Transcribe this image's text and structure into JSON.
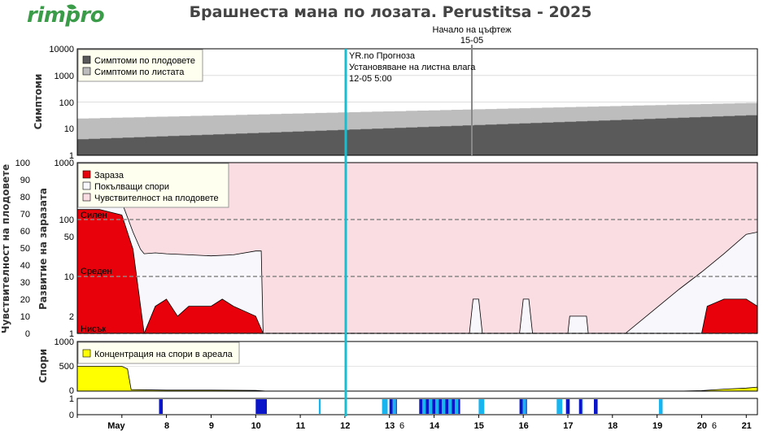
{
  "header": {
    "logo_text": "rimpro",
    "title": "Брашнеста мана по лозата.  Perustitsa - 2025"
  },
  "colors": {
    "symptoms_fruit": "#5a5a5a",
    "symptoms_leaf": "#bdbdbd",
    "infection": "#e8000a",
    "spores_discharge_fill": "#f7f7fc",
    "fruit_susceptibility_bg": "#f9dde3",
    "spore_concentration": "#ffff00",
    "forecast_line": "#17becf",
    "bloom_line": "#888888",
    "wet_dark": "#0a14c8",
    "wet_light": "#18b4f0"
  },
  "annotations": {
    "bloom_title": "Начало на цъфтеж",
    "bloom_date": "15-05",
    "forecast_line1": "YR.no Прогноза",
    "forecast_line2": "Установяване на листна влага",
    "forecast_line3": "12-05 5:00",
    "level_high": "Силен",
    "level_medium": "Среден",
    "level_low": "Нисък"
  },
  "chart_data": [
    {
      "id": "symptoms",
      "type": "area",
      "ylabel": "Симптоми",
      "yscale": "log",
      "ylim": [
        1,
        10000
      ],
      "yticks": [
        "10000",
        "1000",
        "100",
        "10",
        "1"
      ],
      "legend": [
        "Симптоми по плодовете",
        "Симптоми по листата"
      ],
      "legend_position": "top-left",
      "x": [
        "06-05",
        "21-05"
      ],
      "series": [
        {
          "name": "Симптоми по плодовете",
          "start": 4,
          "end": 33
        },
        {
          "name": "Симптоми по листата",
          "start": 24,
          "end": 95
        }
      ]
    },
    {
      "id": "infection",
      "type": "area",
      "ylabel_left": "Чувствителност на плодовете",
      "ylabel_right": "Развитие на заразата",
      "yticks_left": [
        "100",
        "90",
        "80",
        "70",
        "60",
        "50",
        "40",
        "30",
        "20",
        "10",
        "0"
      ],
      "yticks_right": [
        "1000",
        "100",
        "50",
        "10",
        "2",
        "1"
      ],
      "fruit_susceptibility": 100,
      "levels": [
        {
          "name": "Силен",
          "value": 100
        },
        {
          "name": "Среден",
          "value": 10
        },
        {
          "name": "Нисък",
          "value": 1
        }
      ],
      "legend": [
        "Зараза",
        "Покълващи спори",
        "Чувствителност на плодовете"
      ],
      "legend_position": "top-left",
      "germinating_spores": [
        [
          "06-05 00",
          200
        ],
        [
          "06-05 12",
          200
        ],
        [
          "07-05 00",
          200
        ],
        [
          "07-05 06",
          60
        ],
        [
          "07-05 10",
          30
        ],
        [
          "07-05 12",
          25
        ],
        [
          "07-05 18",
          26
        ],
        [
          "08-05 00",
          25
        ],
        [
          "08-05 12",
          24
        ],
        [
          "09-05 00",
          23
        ],
        [
          "09-05 12",
          24
        ],
        [
          "10-05 00",
          28
        ],
        [
          "10-05 03",
          28
        ],
        [
          "10-05 04",
          1
        ],
        [
          "14-05 19",
          1
        ],
        [
          "14-05 21",
          4
        ],
        [
          "15-05 00",
          4
        ],
        [
          "15-05 02",
          1
        ],
        [
          "15-05 22",
          1
        ],
        [
          "16-05 00",
          4
        ],
        [
          "16-05 03",
          4
        ],
        [
          "16-05 05",
          1
        ],
        [
          "17-05 00",
          1
        ],
        [
          "17-05 01",
          2
        ],
        [
          "17-05 10",
          2
        ],
        [
          "17-05 11",
          1
        ],
        [
          "18-05 00",
          1
        ],
        [
          "18-05 06",
          1
        ],
        [
          "18-05 07",
          1
        ],
        [
          "19-05 12",
          6
        ],
        [
          "20-05 00",
          12
        ],
        [
          "20-05 12",
          25
        ],
        [
          "21-05 00",
          55
        ],
        [
          "21-05 06",
          60
        ]
      ],
      "infection_values": [
        [
          "06-05 00",
          150
        ],
        [
          "06-05 12",
          150
        ],
        [
          "07-05 00",
          120
        ],
        [
          "07-05 06",
          30
        ],
        [
          "07-05 12",
          1
        ],
        [
          "07-05 18",
          3
        ],
        [
          "08-05 00",
          4
        ],
        [
          "08-05 06",
          2
        ],
        [
          "08-05 12",
          3
        ],
        [
          "09-05 00",
          3
        ],
        [
          "09-05 06",
          4
        ],
        [
          "09-05 12",
          3
        ],
        [
          "10-05 00",
          2
        ],
        [
          "10-05 04",
          1
        ],
        [
          "20-05 00",
          1
        ],
        [
          "20-05 03",
          3
        ],
        [
          "20-05 12",
          4
        ],
        [
          "21-05 00",
          4
        ],
        [
          "21-05 06",
          3
        ]
      ]
    },
    {
      "id": "spores",
      "type": "area",
      "ylabel": "Спори",
      "ylim": [
        0,
        1000
      ],
      "yticks": [
        "1000",
        "500",
        "0"
      ],
      "legend": [
        "Концентрация на спори в ареала"
      ],
      "legend_position": "top-left",
      "values": [
        [
          "06-05 00",
          500
        ],
        [
          "07-05 00",
          500
        ],
        [
          "07-05 03",
          450
        ],
        [
          "07-05 05",
          30
        ],
        [
          "08-05 00",
          20
        ],
        [
          "09-05 00",
          20
        ],
        [
          "10-05 00",
          15
        ],
        [
          "10-05 06",
          0
        ],
        [
          "19-05 12",
          0
        ],
        [
          "20-05 00",
          10
        ],
        [
          "20-05 12",
          40
        ],
        [
          "21-05 00",
          60
        ],
        [
          "21-05 06",
          80
        ]
      ]
    },
    {
      "id": "leaf_wetness",
      "type": "bar",
      "ylim": [
        0,
        1
      ],
      "yticks": [
        "1",
        "0"
      ],
      "x_tick_labels": [
        "May",
        "8",
        "9",
        "10",
        "11",
        "12",
        "13",
        "14",
        "15",
        "16",
        "17",
        "18",
        "19",
        "20",
        "21"
      ],
      "extra_labels": [
        {
          "after_day": "13",
          "text": "6"
        },
        {
          "after_day": "20",
          "text": "6"
        }
      ],
      "wet_periods": [
        {
          "start": "07-05 20",
          "end": "07-05 22",
          "shade": "dark"
        },
        {
          "start": "10-05 00",
          "end": "10-05 06",
          "shade": "dark"
        },
        {
          "start": "11-05 10",
          "end": "11-05 11",
          "shade": "light"
        },
        {
          "start": "12-05 20",
          "end": "12-05 23",
          "shade": "light"
        },
        {
          "start": "13-05 00",
          "end": "13-05 04",
          "shade": "mixed"
        },
        {
          "start": "13-05 16",
          "end": "14-05 14",
          "shade": "mixed"
        },
        {
          "start": "15-05 00",
          "end": "15-05 03",
          "shade": "light"
        },
        {
          "start": "15-05 22",
          "end": "16-05 02",
          "shade": "mixed"
        },
        {
          "start": "16-05 18",
          "end": "16-05 21",
          "shade": "light"
        },
        {
          "start": "16-05 23",
          "end": "17-05 01",
          "shade": "dark"
        },
        {
          "start": "17-05 06",
          "end": "17-05 08",
          "shade": "mixed"
        },
        {
          "start": "17-05 14",
          "end": "17-05 16",
          "shade": "dark"
        },
        {
          "start": "19-05 01",
          "end": "19-05 03",
          "shade": "light"
        }
      ]
    }
  ]
}
